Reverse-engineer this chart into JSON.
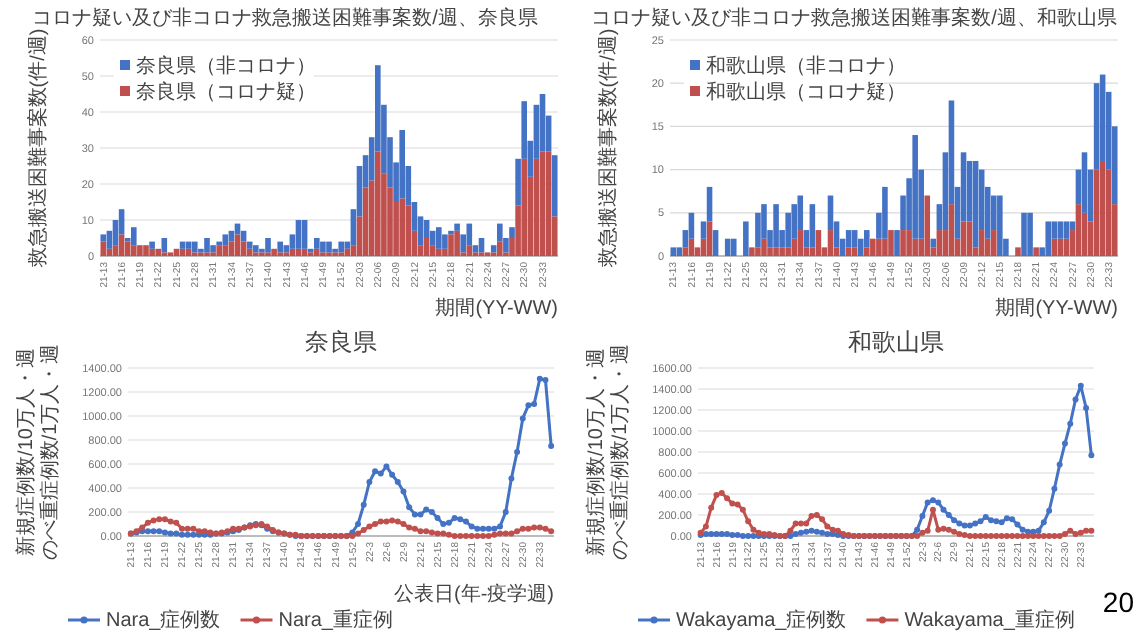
{
  "chart_data": [
    {
      "type": "bar",
      "title": "コロナ疑い及び非コロナ救急搬送困難事案数/週、奈良県",
      "ylabel": "救急搬送困難事案数(件/週)",
      "xlabel": "期間(YY-WW)",
      "stacked": true,
      "grid": "y",
      "legend": "top left",
      "ylim": [
        0,
        60
      ],
      "yticks": [
        0,
        10,
        20,
        30,
        40,
        50,
        60
      ],
      "categories": [
        "21-13",
        null,
        null,
        "21-16",
        null,
        null,
        "21-19",
        null,
        null,
        "21-22",
        null,
        null,
        "21-25",
        null,
        null,
        "21-28",
        null,
        null,
        "21-31",
        null,
        null,
        "21-34",
        null,
        null,
        "21-37",
        null,
        null,
        "21-40",
        null,
        null,
        "21-43",
        null,
        null,
        "21-46",
        null,
        null,
        "21-49",
        null,
        null,
        "21-52",
        null,
        null,
        "22-03",
        null,
        null,
        "22-06",
        null,
        null,
        "22-09",
        null,
        null,
        "22-12",
        null,
        null,
        "22-15",
        null,
        null,
        "22-18",
        null,
        null,
        "22-21",
        null,
        null,
        "22-24",
        null,
        null,
        "22-27",
        null,
        null,
        "22-30",
        null,
        null,
        "22-33",
        null,
        null
      ],
      "series": [
        {
          "name": "奈良県（コロナ疑）",
          "color": "#c0504d",
          "values": [
            4,
            2,
            3,
            6,
            4,
            3,
            3,
            3,
            2,
            2,
            1,
            1,
            2,
            2,
            2,
            1,
            1,
            1,
            1,
            3,
            3,
            4,
            6,
            4,
            2,
            1,
            1,
            1,
            2,
            1,
            1,
            2,
            2,
            2,
            1,
            2,
            1,
            1,
            1,
            1,
            2,
            3,
            11,
            19,
            21,
            29,
            23,
            19,
            15,
            16,
            14,
            7,
            3,
            5,
            3,
            2,
            2,
            6,
            7,
            1,
            3,
            1,
            1,
            1,
            1,
            4,
            1,
            5,
            14,
            27,
            22,
            27,
            29,
            29,
            11
          ]
        },
        {
          "name": "奈良県（非コロナ）",
          "color": "#4472c4",
          "values": [
            2,
            5,
            7,
            7,
            1,
            5,
            0,
            0,
            2,
            0,
            4,
            0,
            0,
            2,
            2,
            3,
            1,
            4,
            2,
            1,
            3,
            3,
            3,
            3,
            2,
            2,
            1,
            4,
            0,
            3,
            2,
            4,
            8,
            8,
            1,
            3,
            3,
            3,
            1,
            3,
            2,
            10,
            14,
            9,
            12,
            24,
            19,
            14,
            11,
            19,
            11,
            8,
            8,
            5,
            4,
            6,
            4,
            1,
            2,
            5,
            6,
            2,
            4,
            0,
            2,
            5,
            4,
            3,
            13,
            16,
            10,
            15,
            16,
            10,
            17
          ]
        }
      ]
    },
    {
      "type": "bar",
      "title": "コロナ疑い及び非コロナ救急搬送困難事案数/週、和歌山県",
      "ylabel": "救急搬送困難事案数(件/週)",
      "xlabel": "期間(YY-WW)",
      "stacked": true,
      "grid": "y",
      "legend": "top left",
      "ylim": [
        0,
        25
      ],
      "yticks": [
        0,
        5,
        10,
        15,
        20,
        25
      ],
      "categories": [
        "21-13",
        null,
        null,
        "21-16",
        null,
        null,
        "21-19",
        null,
        null,
        "21-22",
        null,
        null,
        "21-25",
        null,
        null,
        "21-28",
        null,
        null,
        "21-31",
        null,
        null,
        "21-34",
        null,
        null,
        "21-37",
        null,
        null,
        "21-40",
        null,
        null,
        "21-43",
        null,
        null,
        "21-46",
        null,
        null,
        "21-49",
        null,
        null,
        "21-52",
        null,
        null,
        "22-03",
        null,
        null,
        "22-06",
        null,
        null,
        "22-09",
        null,
        null,
        "22-12",
        null,
        null,
        "22-15",
        null,
        null,
        "22-18",
        null,
        null,
        "22-21",
        null,
        null,
        "22-24",
        null,
        null,
        "22-27",
        null,
        null,
        "22-30",
        null,
        null,
        "22-33",
        null
      ],
      "series": [
        {
          "name": "和歌山県（コロナ疑）",
          "color": "#c0504d",
          "values": [
            0,
            0,
            1,
            2,
            1,
            2,
            4,
            0,
            0,
            0,
            0,
            0,
            0,
            1,
            1,
            2,
            1,
            1,
            1,
            1,
            2,
            3,
            1,
            1,
            3,
            1,
            3,
            1,
            0,
            1,
            1,
            0,
            1,
            2,
            2,
            2,
            3,
            0,
            3,
            3,
            2,
            2,
            7,
            1,
            3,
            3,
            6,
            2,
            4,
            4,
            1,
            3,
            2,
            3,
            0,
            0,
            0,
            1,
            0,
            0,
            1,
            0,
            0,
            2,
            2,
            2,
            3,
            6,
            5,
            4,
            10,
            11,
            10,
            6
          ]
        },
        {
          "name": "和歌山県（非コロナ）",
          "color": "#4472c4",
          "values": [
            1,
            1,
            2,
            3,
            0,
            2,
            4,
            3,
            0,
            2,
            2,
            0,
            4,
            0,
            4,
            4,
            2,
            5,
            2,
            4,
            4,
            4,
            2,
            5,
            0,
            0,
            4,
            3,
            2,
            2,
            2,
            2,
            2,
            0,
            3,
            6,
            0,
            3,
            4,
            6,
            12,
            8,
            0,
            1,
            3,
            9,
            12,
            6,
            8,
            7,
            10,
            7,
            6,
            4,
            7,
            2,
            0,
            0,
            5,
            5,
            0,
            1,
            4,
            2,
            2,
            2,
            1,
            4,
            7,
            6,
            10,
            10,
            9,
            9
          ]
        }
      ]
    },
    {
      "type": "line",
      "title": "奈良県",
      "ylabel": "新規症例数/10万人・週のべ重症例数/1万人・週",
      "xlabel": "公表日(年-疫学週)",
      "grid": "y",
      "legend": "bottom",
      "marker": "circle",
      "ylim": [
        0,
        1400
      ],
      "yticks": [
        {
          "value": 0,
          "label": "0.00"
        },
        {
          "value": 200,
          "label": "200.00"
        },
        {
          "value": 400,
          "label": "400.00"
        },
        {
          "value": 600,
          "label": "600.00"
        },
        {
          "value": 800,
          "label": "800.00"
        },
        {
          "value": 1000,
          "label": "1000.00"
        },
        {
          "value": 1200,
          "label": "1200.00"
        },
        {
          "value": 1400,
          "label": "1400.00"
        }
      ],
      "categories": [
        "21-13",
        null,
        null,
        "21-16",
        null,
        null,
        "21-19",
        null,
        null,
        "21-22",
        null,
        null,
        "21-25",
        null,
        null,
        "21-28",
        null,
        null,
        "21-31",
        null,
        null,
        "21-34",
        null,
        null,
        "21-37",
        null,
        null,
        "21-40",
        null,
        null,
        "21-43",
        null,
        null,
        "21-46",
        null,
        null,
        "21-49",
        null,
        null,
        "21-52",
        null,
        null,
        "22-3",
        null,
        null,
        "22-6",
        null,
        null,
        "22-9",
        null,
        null,
        "22-12",
        null,
        null,
        "22-15",
        null,
        null,
        "22-18",
        null,
        null,
        "22-21",
        null,
        null,
        "22-24",
        null,
        null,
        "22-27",
        null,
        null,
        "22-30",
        null,
        null,
        "22-33",
        null,
        null
      ],
      "series": [
        {
          "name": "Nara_症例数",
          "color": "#4472c4",
          "values": [
            20,
            30,
            40,
            40,
            40,
            40,
            30,
            20,
            20,
            10,
            10,
            10,
            10,
            10,
            10,
            20,
            20,
            30,
            40,
            50,
            70,
            90,
            100,
            90,
            60,
            40,
            30,
            20,
            10,
            0,
            0,
            0,
            0,
            0,
            0,
            0,
            0,
            0,
            0,
            30,
            100,
            260,
            450,
            540,
            520,
            580,
            510,
            450,
            370,
            240,
            180,
            180,
            220,
            200,
            150,
            100,
            110,
            150,
            140,
            120,
            80,
            60,
            60,
            60,
            60,
            80,
            200,
            480,
            700,
            980,
            1090,
            1100,
            1310,
            1300,
            750
          ]
        },
        {
          "name": "Nara_重症例",
          "color": "#c0504d",
          "values": [
            20,
            40,
            70,
            110,
            130,
            140,
            140,
            120,
            110,
            60,
            60,
            60,
            40,
            40,
            30,
            20,
            30,
            40,
            60,
            60,
            70,
            80,
            90,
            100,
            80,
            50,
            30,
            20,
            10,
            10,
            0,
            0,
            0,
            0,
            0,
            0,
            0,
            0,
            0,
            0,
            20,
            50,
            80,
            100,
            120,
            120,
            130,
            120,
            100,
            70,
            60,
            40,
            40,
            30,
            20,
            20,
            10,
            0,
            0,
            0,
            0,
            0,
            0,
            0,
            10,
            20,
            20,
            20,
            40,
            60,
            60,
            70,
            70,
            60,
            40
          ]
        }
      ]
    },
    {
      "type": "line",
      "title": "和歌山県",
      "ylabel": "新規症例数/10万人・週のべ重症例数/1万人・週",
      "grid": "y",
      "legend": "bottom",
      "marker": "circle",
      "ylim": [
        0,
        1600
      ],
      "annotations": [
        "20"
      ],
      "yticks": [
        {
          "value": 0,
          "label": "0.00"
        },
        {
          "value": 200,
          "label": "200.00"
        },
        {
          "value": 400,
          "label": "400.00"
        },
        {
          "value": 600,
          "label": "600.00"
        },
        {
          "value": 800,
          "label": "800.00"
        },
        {
          "value": 1000,
          "label": "1000.00"
        },
        {
          "value": 1200,
          "label": "1200.00"
        },
        {
          "value": 1400,
          "label": "1400.00"
        },
        {
          "value": 1600,
          "label": "1600.00"
        }
      ],
      "categories": [
        "21-13",
        null,
        null,
        "21-16",
        null,
        null,
        "21-19",
        null,
        null,
        "21-22",
        null,
        null,
        "21-25",
        null,
        null,
        "21-28",
        null,
        null,
        "21-31",
        null,
        null,
        "21-34",
        null,
        null,
        "21-37",
        null,
        null,
        "21-40",
        null,
        null,
        "21-43",
        null,
        null,
        "21-46",
        null,
        null,
        "21-49",
        null,
        null,
        "21-52",
        null,
        null,
        "22-3",
        null,
        null,
        "22-6",
        null,
        null,
        "22-9",
        null,
        null,
        "22-12",
        null,
        null,
        "22-15",
        null,
        null,
        "22-18",
        null,
        null,
        "22-21",
        null,
        null,
        "22-24",
        null,
        null,
        "22-27",
        null,
        null,
        "22-30",
        null,
        null,
        "22-33",
        null,
        null
      ],
      "series": [
        {
          "name": "Wakayama_症例数",
          "color": "#4472c4",
          "values": [
            10,
            20,
            20,
            20,
            20,
            20,
            10,
            10,
            0,
            0,
            0,
            0,
            0,
            0,
            0,
            0,
            0,
            0,
            20,
            30,
            40,
            50,
            40,
            30,
            20,
            20,
            10,
            0,
            0,
            0,
            0,
            0,
            0,
            0,
            0,
            0,
            0,
            0,
            0,
            0,
            0,
            60,
            190,
            320,
            340,
            320,
            250,
            200,
            150,
            120,
            100,
            100,
            120,
            140,
            180,
            150,
            140,
            130,
            170,
            160,
            110,
            60,
            40,
            40,
            50,
            130,
            240,
            450,
            680,
            880,
            1070,
            1300,
            1430,
            1220,
            770
          ]
        },
        {
          "name": "Wakayama_重症例",
          "color": "#c0504d",
          "values": [
            30,
            90,
            270,
            390,
            410,
            360,
            310,
            300,
            250,
            140,
            60,
            30,
            20,
            20,
            10,
            0,
            0,
            50,
            120,
            120,
            120,
            190,
            200,
            160,
            90,
            60,
            50,
            20,
            10,
            0,
            0,
            0,
            0,
            0,
            0,
            0,
            0,
            0,
            0,
            0,
            0,
            0,
            30,
            50,
            250,
            60,
            70,
            60,
            40,
            20,
            10,
            0,
            0,
            0,
            0,
            0,
            0,
            0,
            0,
            0,
            0,
            0,
            0,
            0,
            0,
            0,
            0,
            0,
            0,
            20,
            50,
            20,
            30,
            50,
            50
          ]
        }
      ]
    }
  ]
}
